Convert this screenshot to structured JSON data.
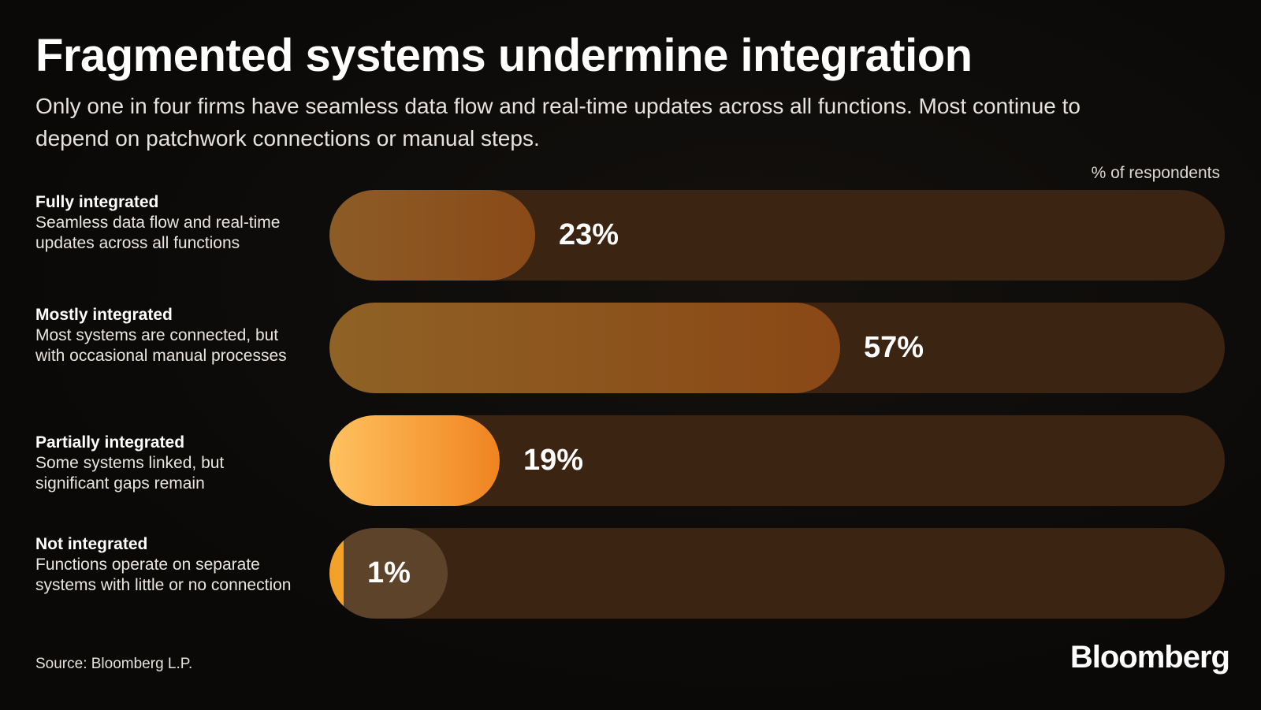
{
  "header": {
    "title": "Fragmented systems undermine integration",
    "subtitle": "Only one in four firms have seamless data flow and real-time updates across all functions. Most continue to depend on patchwork connections or manual steps."
  },
  "chart_data": {
    "type": "bar",
    "orientation": "horizontal",
    "unit_label": "% of respondents",
    "xlim": [
      0,
      100
    ],
    "grid": false,
    "categories": [
      {
        "name": "Fully integrated",
        "description": "Seamless data flow and real-time updates across all functions",
        "value": 23,
        "value_label": "23%",
        "color_start": "#8c5c26",
        "color_end": "#8a4a18"
      },
      {
        "name": "Mostly integrated",
        "description": "Most systems are connected, but with occasional manual processes",
        "value": 57,
        "value_label": "57%",
        "color_start": "#8f6226",
        "color_end": "#8a4816"
      },
      {
        "name": "Partially integrated",
        "description": "Some systems linked, but significant gaps remain",
        "value": 19,
        "value_label": "19%",
        "color_start": "#ffc15e",
        "color_end": "#ef8420"
      },
      {
        "name": "Not integrated",
        "description": "Functions operate on separate systems with little or no connection",
        "value": 1,
        "value_label": "1%",
        "color_start": "#f3a128",
        "color_end": "#f3a128"
      }
    ],
    "track_color": "#3b2412"
  },
  "footer": {
    "source": "Source: Bloomberg L.P.",
    "logo": "Bloomberg"
  }
}
